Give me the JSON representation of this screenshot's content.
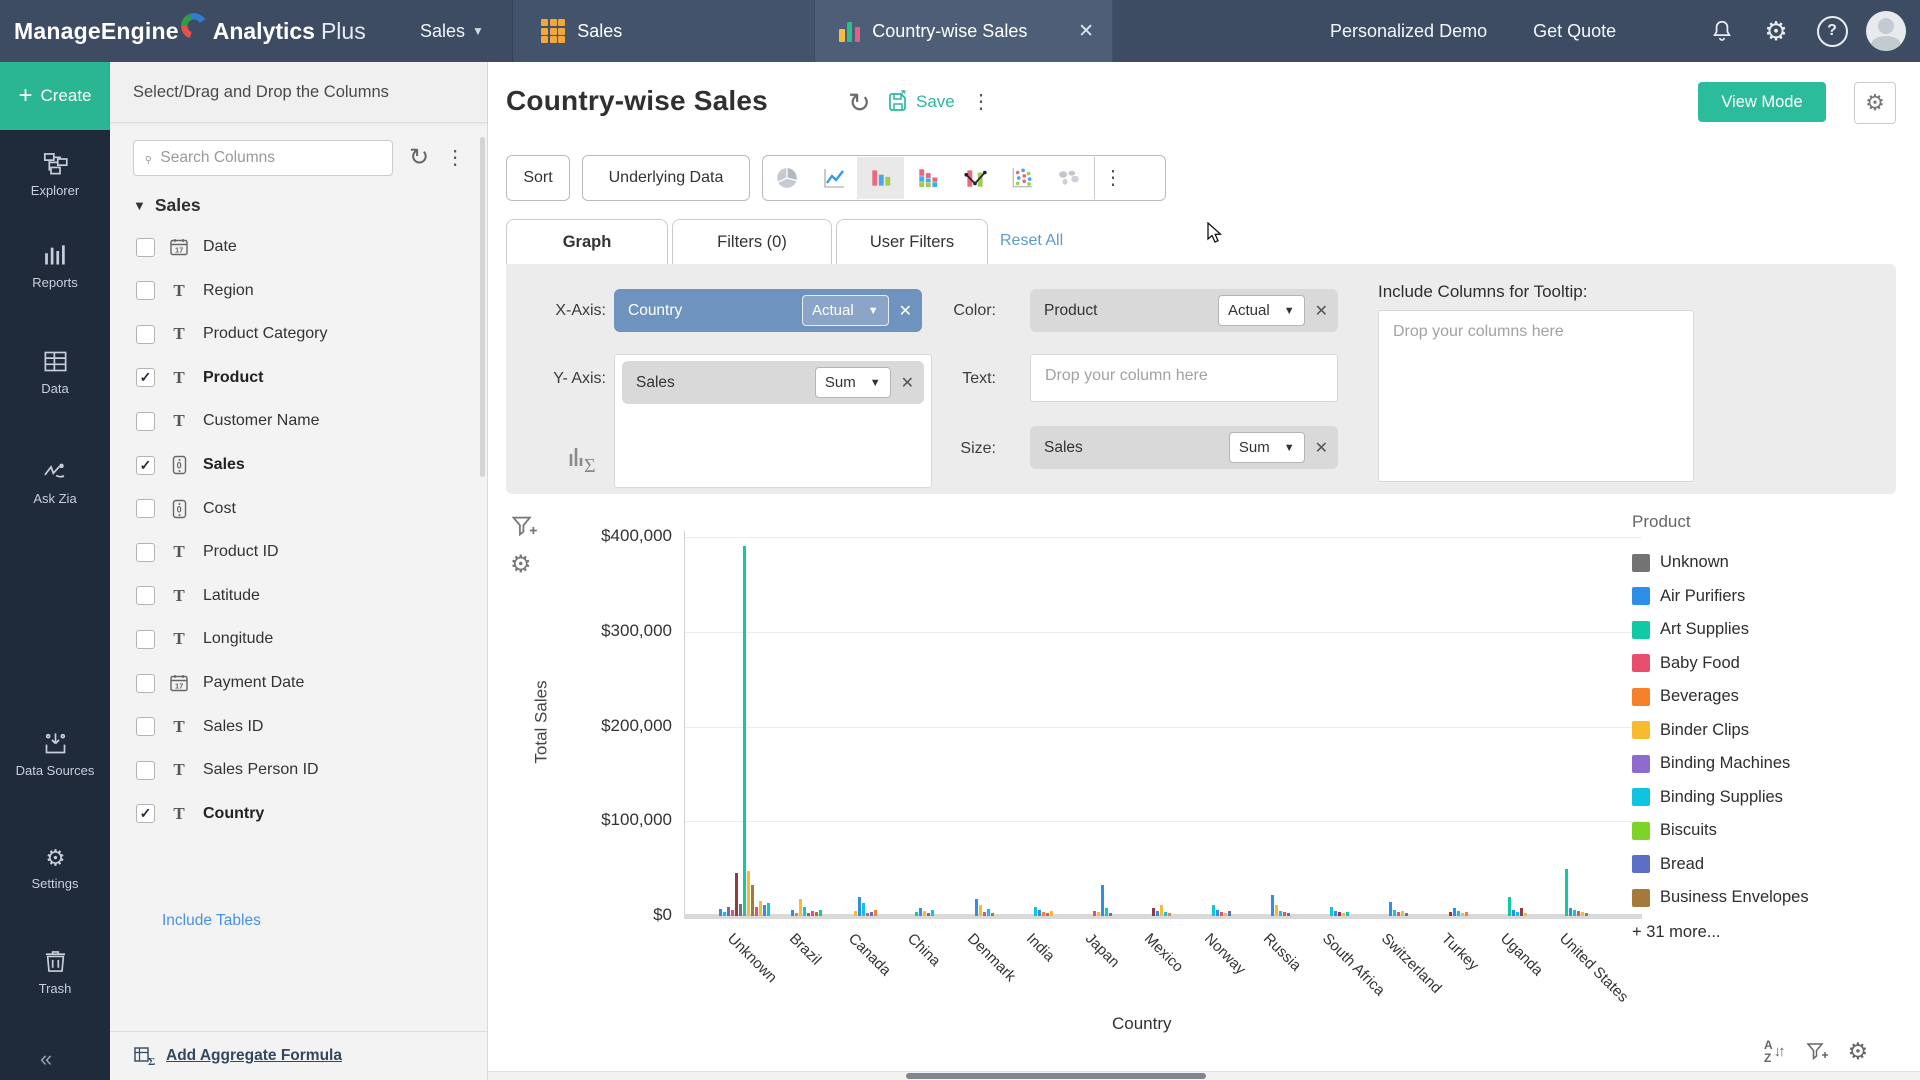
{
  "topbar": {
    "logo_manageengine": "ManageEngine",
    "logo_analytics": "Analytics",
    "logo_plus": "Plus",
    "workspace_dropdown": "Sales",
    "workspace_tab": "Sales",
    "report_tab": "Country-wise Sales",
    "close_label": "✕",
    "links": {
      "demo": "Personalized Demo",
      "quote": "Get Quote"
    }
  },
  "sidebar": {
    "create_label": "Create",
    "items": [
      {
        "label": "Explorer",
        "icon": "sitemap-icon"
      },
      {
        "label": "Reports",
        "icon": "bar-chart-icon"
      },
      {
        "label": "Data",
        "icon": "table-icon"
      },
      {
        "label": "Ask Zia",
        "icon": "zia-icon"
      },
      {
        "label": "Data Sources",
        "icon": "data-sources-icon"
      },
      {
        "label": "Settings",
        "icon": "gear-icon"
      },
      {
        "label": "Trash",
        "icon": "trash-icon"
      }
    ]
  },
  "columns_panel": {
    "header": "Select/Drag and Drop the Columns",
    "search_placeholder": "Search Columns",
    "group_label": "Sales",
    "items": [
      {
        "label": "Date",
        "type": "date",
        "checked": false
      },
      {
        "label": "Region",
        "type": "text",
        "checked": false
      },
      {
        "label": "Product Category",
        "type": "text",
        "checked": false
      },
      {
        "label": "Product",
        "type": "text",
        "checked": true
      },
      {
        "label": "Customer Name",
        "type": "text",
        "checked": false
      },
      {
        "label": "Sales",
        "type": "number",
        "checked": true
      },
      {
        "label": "Cost",
        "type": "number",
        "checked": false
      },
      {
        "label": "Product ID",
        "type": "text",
        "checked": false
      },
      {
        "label": "Latitude",
        "type": "text",
        "checked": false
      },
      {
        "label": "Longitude",
        "type": "text",
        "checked": false
      },
      {
        "label": "Payment Date",
        "type": "date",
        "checked": false
      },
      {
        "label": "Sales ID",
        "type": "text",
        "checked": false
      },
      {
        "label": "Sales Person ID",
        "type": "text",
        "checked": false
      },
      {
        "label": "Country",
        "type": "text",
        "checked": true
      }
    ],
    "include_tables": "Include Tables",
    "add_aggregate": "Add Aggregate Formula"
  },
  "report": {
    "title": "Country-wise Sales",
    "save_label": "Save",
    "view_mode_label": "View Mode",
    "sort_label": "Sort",
    "underlying_data_label": "Underlying Data",
    "chart_types": [
      "pie",
      "line",
      "bar",
      "stacked-bar",
      "bar-line",
      "scatter",
      "map"
    ],
    "selected_chart_type": "bar",
    "tabs": [
      "Graph",
      "Filters (0)",
      "User Filters"
    ],
    "active_tab": "Graph",
    "reset_all": "Reset All",
    "x_axis_label": "X-Axis:",
    "y_axis_label": "Y- Axis:",
    "color_label": "Color:",
    "text_label": "Text:",
    "size_label": "Size:",
    "tooltip_label": "Include Columns for Tooltip:",
    "x_chip": {
      "field": "Country",
      "agg": "Actual"
    },
    "y_chip": {
      "field": "Sales",
      "agg": "Sum"
    },
    "color_chip": {
      "field": "Product",
      "agg": "Actual"
    },
    "size_chip": {
      "field": "Sales",
      "agg": "Sum"
    },
    "text_placeholder": "Drop your column here",
    "tooltip_placeholder": "Drop your columns here"
  },
  "chart_data": {
    "type": "bar",
    "xlabel": "Country",
    "ylabel": "Total Sales",
    "ylim": [
      0,
      400000
    ],
    "y_ticks": [
      "$400,000",
      "$300,000",
      "$200,000",
      "$100,000",
      "$0"
    ],
    "grid": true,
    "legend_position": "right",
    "legend_title": "Product",
    "legend": [
      {
        "name": "Unknown",
        "color": "#737373"
      },
      {
        "name": "Air Purifiers",
        "color": "#2E8FE8"
      },
      {
        "name": "Art Supplies",
        "color": "#12C9A6"
      },
      {
        "name": "Baby Food",
        "color": "#E84F6E"
      },
      {
        "name": "Beverages",
        "color": "#F5822B"
      },
      {
        "name": "Binder Clips",
        "color": "#F8BB2F"
      },
      {
        "name": "Binding Machines",
        "color": "#8F6BCE"
      },
      {
        "name": "Binding Supplies",
        "color": "#0FC3E3"
      },
      {
        "name": "Biscuits",
        "color": "#7ED32A"
      },
      {
        "name": "Bread",
        "color": "#5A6FC5"
      },
      {
        "name": "Business Envelopes",
        "color": "#A5793C"
      }
    ],
    "legend_more": "+ 31 more...",
    "palette": [
      "#737373",
      "#2E8FE8",
      "#12C9A6",
      "#E84F6E",
      "#F5822B",
      "#F8BB2F",
      "#8F6BCE",
      "#0FC3E3",
      "#7ED32A",
      "#5A6FC5",
      "#A5793C",
      "#8E3B47"
    ],
    "bar_format": "[palette_index, sales_usd]",
    "countries": [
      {
        "name": "Unknown",
        "bars": [
          [
            1,
            7000
          ],
          [
            7,
            4500
          ],
          [
            9,
            10000
          ],
          [
            3,
            6000
          ],
          [
            11,
            45000
          ],
          [
            0,
            13000
          ],
          [
            2,
            390000
          ],
          [
            5,
            48000
          ],
          [
            10,
            33000
          ],
          [
            3,
            9000
          ],
          [
            5,
            16000
          ],
          [
            1,
            12000
          ],
          [
            7,
            14000
          ]
        ]
      },
      {
        "name": "Brazil",
        "bars": [
          [
            1,
            6000
          ],
          [
            4,
            3500
          ],
          [
            5,
            18000
          ],
          [
            7,
            9000
          ],
          [
            0,
            3000
          ],
          [
            3,
            5000
          ],
          [
            10,
            4000
          ],
          [
            2,
            6500
          ]
        ]
      },
      {
        "name": "Canada",
        "bars": [
          [
            5,
            5000
          ],
          [
            1,
            20000
          ],
          [
            7,
            14000
          ],
          [
            3,
            3500
          ],
          [
            9,
            4500
          ],
          [
            4,
            6000
          ]
        ]
      },
      {
        "name": "China",
        "bars": [
          [
            2,
            4500
          ],
          [
            1,
            8000
          ],
          [
            5,
            5500
          ],
          [
            0,
            3000
          ],
          [
            7,
            6500
          ]
        ]
      },
      {
        "name": "Denmark",
        "bars": [
          [
            1,
            18000
          ],
          [
            5,
            12000
          ],
          [
            3,
            4500
          ],
          [
            7,
            7000
          ],
          [
            10,
            3000
          ]
        ]
      },
      {
        "name": "India",
        "bars": [
          [
            7,
            10000
          ],
          [
            1,
            6500
          ],
          [
            4,
            4000
          ],
          [
            3,
            3500
          ],
          [
            5,
            5000
          ]
        ]
      },
      {
        "name": "Japan",
        "bars": [
          [
            3,
            5000
          ],
          [
            5,
            4500
          ],
          [
            1,
            33000
          ],
          [
            7,
            8000
          ],
          [
            0,
            3500
          ]
        ]
      },
      {
        "name": "Mexico",
        "bars": [
          [
            11,
            8000
          ],
          [
            1,
            5500
          ],
          [
            5,
            12000
          ],
          [
            7,
            4500
          ],
          [
            4,
            3500
          ]
        ]
      },
      {
        "name": "Norway",
        "bars": [
          [
            7,
            12000
          ],
          [
            1,
            6500
          ],
          [
            3,
            4000
          ],
          [
            5,
            3500
          ],
          [
            9,
            5500
          ]
        ]
      },
      {
        "name": "Russia",
        "bars": [
          [
            1,
            22000
          ],
          [
            5,
            12000
          ],
          [
            7,
            5500
          ],
          [
            3,
            4000
          ],
          [
            0,
            3000
          ]
        ]
      },
      {
        "name": "South Africa",
        "bars": [
          [
            7,
            10000
          ],
          [
            1,
            5500
          ],
          [
            11,
            4000
          ],
          [
            5,
            3500
          ],
          [
            2,
            4500
          ]
        ]
      },
      {
        "name": "Switzerland",
        "bars": [
          [
            1,
            15000
          ],
          [
            7,
            6500
          ],
          [
            3,
            4000
          ],
          [
            5,
            5500
          ],
          [
            9,
            3500
          ]
        ]
      },
      {
        "name": "Turkey",
        "bars": [
          [
            11,
            4000
          ],
          [
            1,
            8000
          ],
          [
            7,
            5500
          ],
          [
            5,
            3500
          ],
          [
            4,
            4500
          ]
        ]
      },
      {
        "name": "Uganda",
        "bars": [
          [
            2,
            20000
          ],
          [
            1,
            6500
          ],
          [
            7,
            4500
          ],
          [
            11,
            8000
          ],
          [
            5,
            3500
          ]
        ]
      },
      {
        "name": "United States",
        "bars": [
          [
            2,
            50000
          ],
          [
            1,
            8500
          ],
          [
            7,
            6000
          ],
          [
            3,
            5000
          ],
          [
            5,
            4500
          ],
          [
            10,
            3500
          ]
        ]
      }
    ]
  }
}
